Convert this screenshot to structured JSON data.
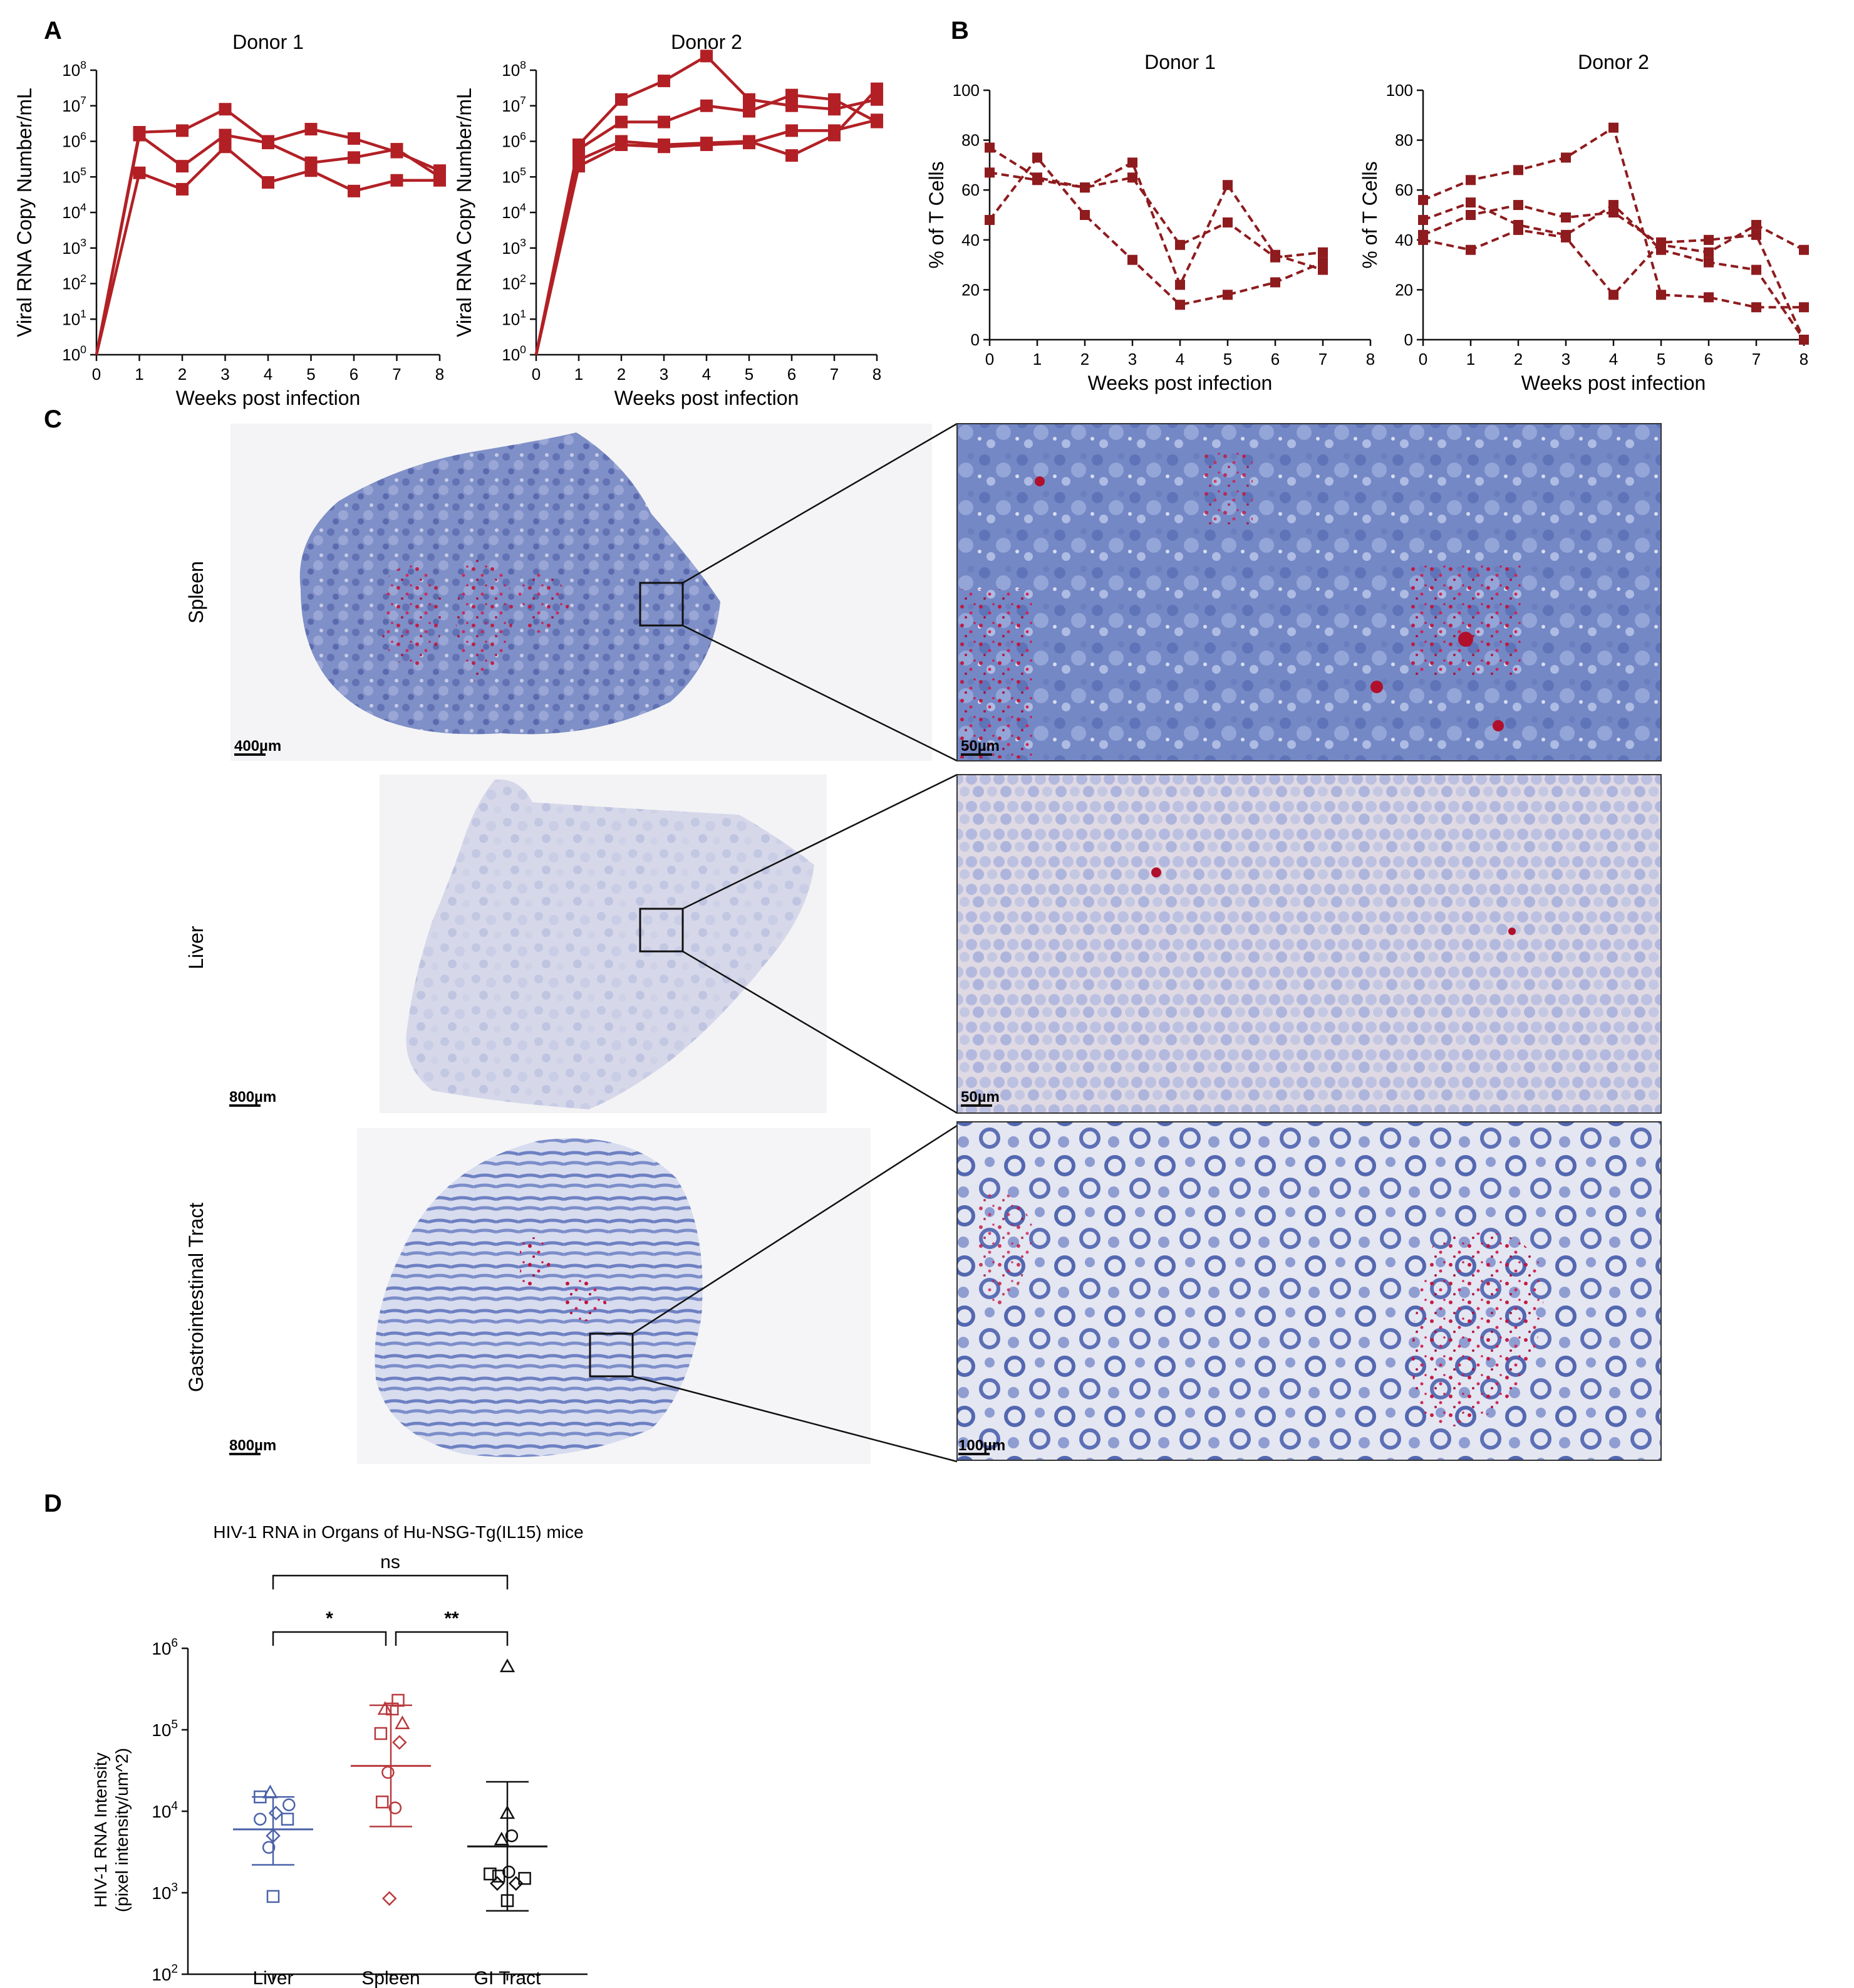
{
  "panels": {
    "A": "A",
    "B": "B",
    "C": "C",
    "D": "D"
  },
  "colors": {
    "red": "#b22025",
    "dark_red": "#8e1b1e",
    "blue": "#4b62a8",
    "spleen_red": "#b93a3e",
    "black": "#111111"
  },
  "chart_data": [
    {
      "id": "A-donor1",
      "type": "line",
      "title": "Donor 1",
      "xlabel": "Weeks post infection",
      "ylabel": "Viral RNA Copy Number/mL",
      "yscale": "log",
      "xlim": [
        0,
        8
      ],
      "ylim": [
        1,
        100000000
      ],
      "x_ticks": [
        "0",
        "1",
        "2",
        "3",
        "4",
        "5",
        "6",
        "7",
        "8"
      ],
      "y_ticks": [
        {
          "base": "10",
          "exp": "0"
        },
        {
          "base": "10",
          "exp": "1"
        },
        {
          "base": "10",
          "exp": "2"
        },
        {
          "base": "10",
          "exp": "3"
        },
        {
          "base": "10",
          "exp": "4"
        },
        {
          "base": "10",
          "exp": "5"
        },
        {
          "base": "10",
          "exp": "6"
        },
        {
          "base": "10",
          "exp": "7"
        },
        {
          "base": "10",
          "exp": "8"
        }
      ],
      "x": [
        0,
        1,
        2,
        3,
        4,
        5,
        6,
        7,
        8
      ],
      "series": [
        {
          "values": [
            1,
            1800000,
            2000000,
            8000000,
            1000000,
            2200000,
            1200000,
            500000,
            150000
          ]
        },
        {
          "values": [
            1,
            1500000,
            200000,
            1500000,
            900000,
            250000,
            350000,
            600000,
            100000
          ]
        },
        {
          "values": [
            1,
            130000,
            45000,
            700000,
            70000,
            150000,
            40000,
            80000,
            80000
          ]
        }
      ]
    },
    {
      "id": "A-donor2",
      "type": "line",
      "title": "Donor 2",
      "xlabel": "Weeks post infection",
      "ylabel": "Viral RNA Copy Number/mL",
      "yscale": "log",
      "xlim": [
        0,
        8
      ],
      "ylim": [
        1,
        100000000
      ],
      "x_ticks": [
        "0",
        "1",
        "2",
        "3",
        "4",
        "5",
        "6",
        "7",
        "8"
      ],
      "y_ticks": [
        {
          "base": "10",
          "exp": "0"
        },
        {
          "base": "10",
          "exp": "1"
        },
        {
          "base": "10",
          "exp": "2"
        },
        {
          "base": "10",
          "exp": "3"
        },
        {
          "base": "10",
          "exp": "4"
        },
        {
          "base": "10",
          "exp": "5"
        },
        {
          "base": "10",
          "exp": "6"
        },
        {
          "base": "10",
          "exp": "7"
        },
        {
          "base": "10",
          "exp": "8"
        }
      ],
      "x": [
        0,
        1,
        2,
        3,
        4,
        5,
        6,
        7,
        8
      ],
      "series": [
        {
          "values": [
            1,
            800000,
            15000000,
            50000000,
            250000000,
            15000000,
            10000000,
            8000000,
            15000000
          ]
        },
        {
          "values": [
            1,
            600000,
            3500000,
            3500000,
            10000000,
            7000000,
            20000000,
            15000000,
            3500000
          ]
        },
        {
          "values": [
            1,
            300000,
            1000000,
            800000,
            900000,
            1000000,
            400000,
            1500000,
            30000000
          ]
        },
        {
          "values": [
            1,
            200000,
            800000,
            700000,
            800000,
            900000,
            2000000,
            2000000,
            4000000
          ]
        }
      ]
    },
    {
      "id": "B-donor1",
      "type": "line",
      "title": "Donor 1",
      "xlabel": "Weeks post infection",
      "ylabel": "% of T Cells",
      "xlim": [
        0,
        8
      ],
      "ylim": [
        0,
        100
      ],
      "x_ticks": [
        "0",
        "1",
        "2",
        "3",
        "4",
        "5",
        "6",
        "7",
        "8"
      ],
      "y_ticks": [
        "0",
        "20",
        "40",
        "60",
        "80",
        "100"
      ],
      "line_style": "dashed",
      "series": [
        {
          "x": [
            0,
            1,
            2,
            3,
            4,
            5,
            6,
            7
          ],
          "values": [
            77,
            65,
            61,
            65,
            38,
            47,
            33,
            35
          ]
        },
        {
          "x": [
            0,
            1,
            2,
            3,
            4,
            5,
            6,
            7
          ],
          "values": [
            67,
            64,
            61,
            71,
            22,
            62,
            34,
            28
          ]
        },
        {
          "x": [
            0,
            1,
            2,
            3,
            4,
            5,
            6,
            7
          ],
          "values": [
            48,
            73,
            50,
            32,
            14,
            18,
            23,
            31
          ]
        }
      ]
    },
    {
      "id": "B-donor2",
      "type": "line",
      "title": "Donor 2",
      "xlabel": "Weeks post infection",
      "ylabel": "% of T Cells",
      "xlim": [
        0,
        8
      ],
      "ylim": [
        0,
        100
      ],
      "x_ticks": [
        "0",
        "1",
        "2",
        "3",
        "4",
        "5",
        "6",
        "7",
        "8"
      ],
      "y_ticks": [
        "0",
        "20",
        "40",
        "60",
        "80",
        "100"
      ],
      "line_style": "dashed",
      "series": [
        {
          "x": [
            0,
            1,
            2,
            3,
            4,
            5,
            6,
            7,
            8
          ],
          "values": [
            56,
            64,
            68,
            73,
            85,
            18,
            17,
            13,
            13
          ]
        },
        {
          "x": [
            0,
            1,
            2,
            3,
            4,
            5,
            6,
            7,
            8
          ],
          "values": [
            48,
            55,
            46,
            42,
            54,
            36,
            31,
            28,
            0
          ]
        },
        {
          "x": [
            0,
            1,
            2,
            3,
            4,
            5,
            6,
            7,
            8
          ],
          "values": [
            42,
            50,
            54,
            49,
            51,
            38,
            35,
            46,
            36
          ]
        },
        {
          "x": [
            0,
            1,
            2,
            3,
            4,
            5,
            6,
            7,
            8
          ],
          "values": [
            40,
            36,
            44,
            41,
            18,
            39,
            40,
            42,
            0
          ]
        }
      ]
    },
    {
      "id": "D",
      "type": "scatter",
      "title": "HIV-1 RNA in Organs of Hu-NSG-Tg(IL15) mice",
      "ylabel": "HIV-1 RNA Intensity",
      "ylabel2": "(pixel intensity/um^2)",
      "yscale": "log",
      "ylim": [
        100,
        1000000
      ],
      "categories": [
        "Liver",
        "Spleen",
        "GI Tract"
      ],
      "y_ticks": [
        {
          "base": "10",
          "exp": "2"
        },
        {
          "base": "10",
          "exp": "3"
        },
        {
          "base": "10",
          "exp": "4"
        },
        {
          "base": "10",
          "exp": "5"
        },
        {
          "base": "10",
          "exp": "6"
        }
      ],
      "groups": [
        {
          "name": "Liver",
          "color": "#4b62a8",
          "mean": 6000,
          "sd_low": 2200,
          "sd_high": 15000,
          "points": [
            {
              "shape": "square",
              "dx": -0.45,
              "y": 15000
            },
            {
              "shape": "triangle",
              "dx": -0.1,
              "y": 17000
            },
            {
              "shape": "circle",
              "dx": 0.55,
              "y": 12000
            },
            {
              "shape": "diamond",
              "dx": 0.1,
              "y": 9500
            },
            {
              "shape": "circle",
              "dx": -0.45,
              "y": 8000
            },
            {
              "shape": "square",
              "dx": 0.5,
              "y": 8000
            },
            {
              "shape": "diamond",
              "dx": 0.0,
              "y": 5000
            },
            {
              "shape": "circle",
              "dx": -0.15,
              "y": 3600
            },
            {
              "shape": "square",
              "dx": 0.0,
              "y": 900
            }
          ]
        },
        {
          "name": "Spleen",
          "color": "#b93a3e",
          "mean": 36000,
          "sd_low": 6500,
          "sd_high": 200000,
          "points": [
            {
              "shape": "square",
              "dx": 0.25,
              "y": 230000
            },
            {
              "shape": "triangle",
              "dx": -0.2,
              "y": 180000
            },
            {
              "shape": "square",
              "dx": 0.05,
              "y": 180000
            },
            {
              "shape": "triangle",
              "dx": 0.4,
              "y": 120000
            },
            {
              "shape": "square",
              "dx": -0.35,
              "y": 90000
            },
            {
              "shape": "diamond",
              "dx": 0.3,
              "y": 70000
            },
            {
              "shape": "circle",
              "dx": -0.1,
              "y": 30000
            },
            {
              "shape": "square",
              "dx": -0.3,
              "y": 13000
            },
            {
              "shape": "circle",
              "dx": 0.15,
              "y": 11000
            },
            {
              "shape": "diamond",
              "dx": -0.05,
              "y": 850
            }
          ]
        },
        {
          "name": "GI Tract",
          "color": "#111111",
          "mean": 3700,
          "sd_low": 600,
          "sd_high": 23000,
          "points": [
            {
              "shape": "triangle",
              "dx": 0.0,
              "y": 600000
            },
            {
              "shape": "triangle",
              "dx": 0.0,
              "y": 9500
            },
            {
              "shape": "triangle",
              "dx": -0.2,
              "y": 4500
            },
            {
              "shape": "circle",
              "dx": 0.15,
              "y": 5000
            },
            {
              "shape": "square",
              "dx": -0.6,
              "y": 1700
            },
            {
              "shape": "square",
              "dx": -0.3,
              "y": 1600
            },
            {
              "shape": "circle",
              "dx": 0.05,
              "y": 1800
            },
            {
              "shape": "square",
              "dx": 0.6,
              "y": 1500
            },
            {
              "shape": "diamond",
              "dx": -0.35,
              "y": 1300
            },
            {
              "shape": "diamond",
              "dx": 0.3,
              "y": 1300
            },
            {
              "shape": "square",
              "dx": 0.0,
              "y": 800
            }
          ]
        }
      ],
      "significance": [
        {
          "label": "*",
          "from": "Liver",
          "to": "Spleen"
        },
        {
          "label": "**",
          "from": "Spleen",
          "to": "GI Tract"
        },
        {
          "label": "ns",
          "from": "Liver",
          "to": "GI Tract"
        }
      ]
    }
  ],
  "histology": {
    "rows": [
      {
        "label": "Spleen",
        "overview_scale": "400µm",
        "zoom_scale": "50µm"
      },
      {
        "label": "Liver",
        "overview_scale": "800µm",
        "zoom_scale": "50µm"
      },
      {
        "label": "Gastrointestinal Tract",
        "overview_scale": "800µm",
        "zoom_scale": "100µm"
      }
    ]
  }
}
